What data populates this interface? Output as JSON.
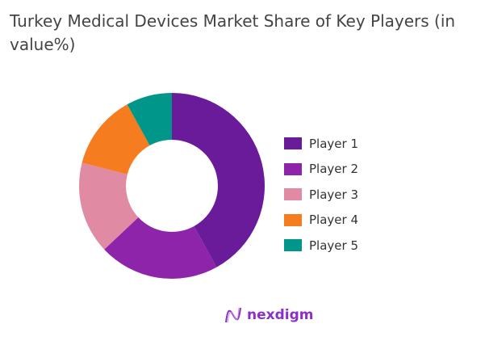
{
  "chart_data": {
    "type": "pie",
    "donut": true,
    "title": "Turkey Medical Devices Market Share of Key Players (in value%)",
    "categories": [
      "Player 1",
      "Player 2",
      "Player 3",
      "Player 4",
      "Player 5"
    ],
    "values": [
      42,
      21,
      16,
      13,
      8
    ],
    "colors": [
      "#6a1b9a",
      "#8e24aa",
      "#e08aa4",
      "#f57c1f",
      "#00968a"
    ],
    "legend_position": "right"
  },
  "logo": {
    "text": "nexdigm",
    "color": "#8b2fc9"
  }
}
